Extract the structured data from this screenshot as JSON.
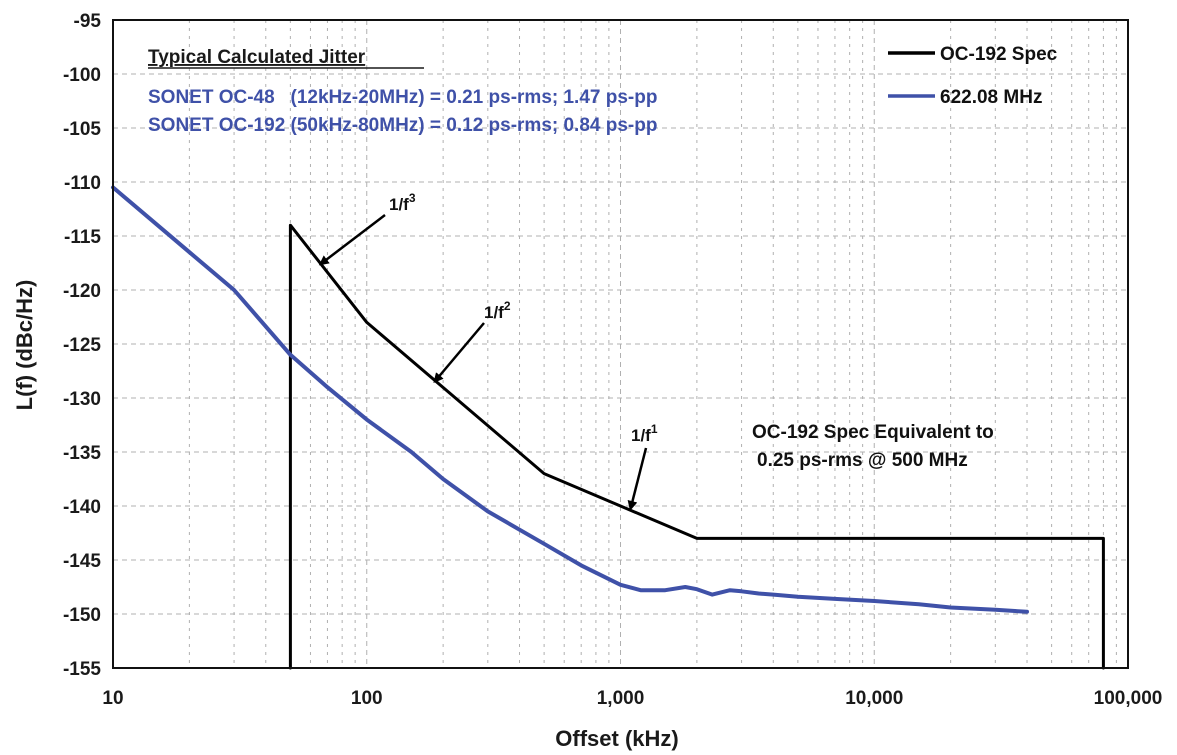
{
  "chart_data": {
    "type": "line",
    "xlabel": "Offset (kHz)",
    "ylabel": "L(f) (dBc/Hz)",
    "xscale": "log",
    "xlim": [
      10,
      100000
    ],
    "ylim": [
      -155,
      -95
    ],
    "x_ticks": [
      10,
      100,
      1000,
      10000,
      100000
    ],
    "x_tick_labels": [
      "10",
      "100",
      "1,000",
      "10,000",
      "100,000"
    ],
    "y_ticks": [
      -95,
      -100,
      -105,
      -110,
      -115,
      -120,
      -125,
      -130,
      -135,
      -140,
      -145,
      -150,
      -155
    ],
    "grid": true,
    "legend_position": "top-right",
    "series": [
      {
        "name": "OC-192 Spec",
        "color": "#000000",
        "x": [
          50,
          50,
          100,
          500,
          1000,
          2000,
          80000,
          80000
        ],
        "y": [
          -155,
          -114,
          -123,
          -137,
          -140,
          -143,
          -143,
          -155
        ]
      },
      {
        "name": "622.08 MHz",
        "color": "#3f51a8",
        "x": [
          10,
          20,
          30,
          50,
          70,
          100,
          150,
          200,
          300,
          500,
          700,
          1000,
          1200,
          1500,
          1800,
          2000,
          2300,
          2700,
          3000,
          3500,
          4000,
          5000,
          7000,
          10000,
          15000,
          20000,
          30000,
          40000
        ],
        "y": [
          -110.5,
          -116.5,
          -120,
          -126,
          -129,
          -132,
          -135,
          -137.5,
          -140.5,
          -143.5,
          -145.5,
          -147.3,
          -147.8,
          -147.8,
          -147.5,
          -147.7,
          -148.2,
          -147.8,
          -147.9,
          -148.1,
          -148.2,
          -148.4,
          -148.6,
          -148.8,
          -149.1,
          -149.4,
          -149.6,
          -149.8
        ]
      }
    ],
    "annotations": {
      "jitter_title": "Typical Calculated Jitter",
      "jitter_line1": "SONET OC-48   (12kHz-20MHz) = 0.21 ps-rms; 1.47 ps-pp",
      "jitter_line2": "SONET OC-192 (50kHz-80MHz) = 0.12 ps-rms; 0.84 ps-pp",
      "slope_labels": [
        {
          "base": "1/f",
          "exp": "3"
        },
        {
          "base": "1/f",
          "exp": "2"
        },
        {
          "base": "1/f",
          "exp": "1"
        }
      ],
      "spec_note_line1": "OC-192 Spec Equivalent to",
      "spec_note_line2": "0.25 ps-rms @ 500 MHz"
    },
    "colors": {
      "blue_text": "#3f51a8",
      "blue_line": "#3f51a8",
      "black_line": "#000000",
      "grid": "#b0b0b0"
    }
  }
}
